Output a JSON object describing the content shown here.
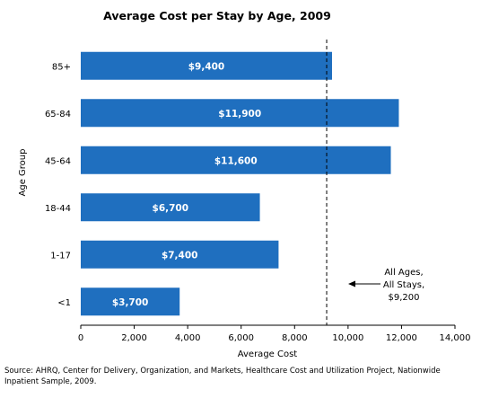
{
  "chart_data": {
    "type": "bar",
    "orientation": "horizontal",
    "title": "Average Cost per Stay by Age, 2009",
    "xlabel": "Average Cost",
    "ylabel": "Age Group",
    "categories": [
      "85+",
      "65-84",
      "45-64",
      "18-44",
      "1-17",
      "<1"
    ],
    "values": [
      9400,
      11900,
      11600,
      6700,
      7400,
      3700
    ],
    "data_labels": [
      "$9,400",
      "$11,900",
      "$11,600",
      "$6,700",
      "$7,400",
      "$3,700"
    ],
    "xlim": [
      0,
      14000
    ],
    "xticks": [
      0,
      2000,
      4000,
      6000,
      8000,
      10000,
      12000,
      14000
    ],
    "xtick_labels": [
      "0",
      "2,000",
      "4,000",
      "6,000",
      "8,000",
      "10,000",
      "12,000",
      "14,000"
    ],
    "grid": false,
    "bar_color": "#1F6FBF",
    "reference_line": {
      "value": 9200,
      "style": "dashed",
      "annotation": [
        "All Ages,",
        "All Stays,",
        "$9,200"
      ]
    }
  },
  "footer": {
    "source": "Source: AHRQ, Center for Delivery, Organization, and Markets, Healthcare Cost and Utilization Project, Nationwide Inpatient Sample, 2009."
  }
}
